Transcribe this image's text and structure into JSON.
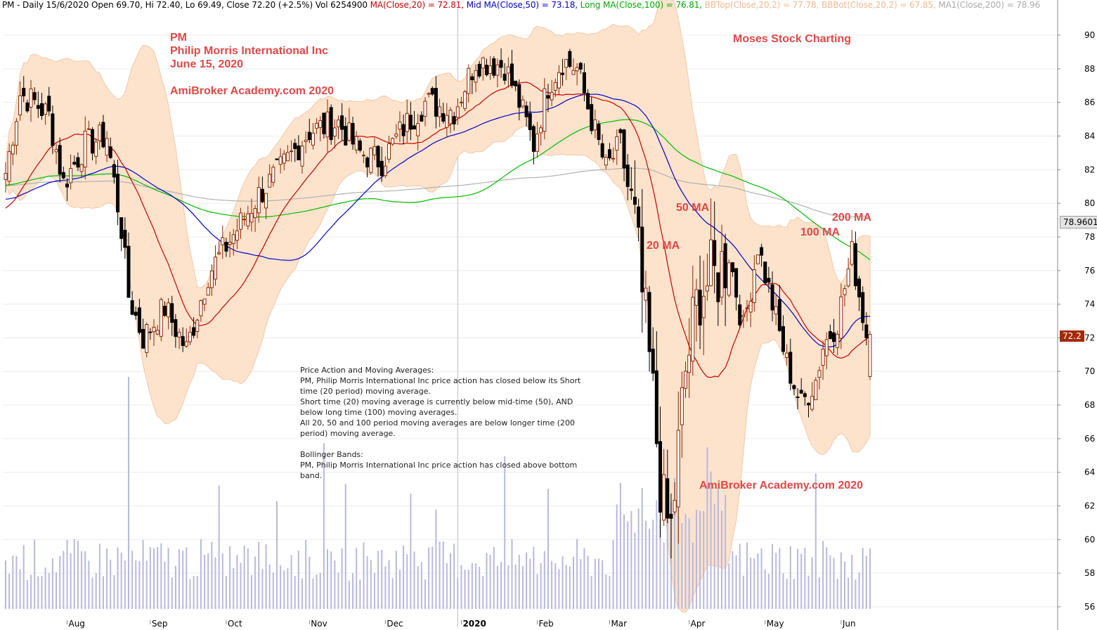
{
  "header": {
    "title": "PM - Daily 15/6/2020 Open 69.70, Hi 72.40, Lo 69.49, Close 72.20 (+2.5%) Vol 6254900 ",
    "indicators": [
      {
        "text": "MA(Close,20) = 72.81, ",
        "color": "#cc0000"
      },
      {
        "text": "Mid MA(Close,50) = 73.18, ",
        "color": "#0000cc"
      },
      {
        "text": "Long MA(Close,100) = 76.81, ",
        "color": "#00aa00"
      },
      {
        "text": "BBTop(Close,20,2) = 77.78, ",
        "color": "#f0b890"
      },
      {
        "text": "BBBot(Close,20,2) = 67.85, ",
        "color": "#f0b890"
      },
      {
        "text": "MA1(Close,200) = 78.96",
        "color": "#aaaaaa"
      }
    ]
  },
  "annotations": {
    "ticker": "PM",
    "company": "Philip Morris International Inc",
    "date": "June 15, 2020",
    "brand_top": "AmiBroker Academy.com  2020",
    "moses": "Moses Stock Charting",
    "brand_bottom": "AmiBroker Academy.com 2020",
    "ma50": "50 MA",
    "ma200": "200 MA",
    "ma100": "100 MA",
    "ma20": "20 MA"
  },
  "note_lines": [
    "Price Action and Moving Averages:",
    "PM, Philip Morris International Inc price action has closed below its Short time (20 period) moving average.",
    "Short time (20) moving average is currently below mid-time (50), AND below long time (100) moving averages.",
    "All 20, 50 and 100 period moving averages are below longer time (200 period) moving average.",
    "",
    "Bollinger Bands:",
    "PM, Philip Morris International Inc price action has closed above bottom band."
  ],
  "price_badges": {
    "ma200": "78.9601",
    "close": "72.2"
  },
  "colors": {
    "up": "#8b2500",
    "down": "#000000",
    "ma20": "#cc0000",
    "ma50": "#0000cc",
    "ma100": "#00bb00",
    "ma200": "#b0b0b0",
    "band": "#fde3cc",
    "bandline": "#f2c8a8",
    "volume": "#b8b8dc",
    "accent": "#e04848"
  },
  "chart_data": {
    "type": "candlestick",
    "title": "PM - Daily 15/6/2020",
    "ylim": [
      55.5,
      91
    ],
    "y_ticks": [
      56,
      58,
      60,
      62,
      64,
      66,
      68,
      70,
      72,
      74,
      76,
      78,
      80,
      82,
      84,
      86,
      88,
      90
    ],
    "x_month_labels": [
      {
        "label": "Aug",
        "index": 17
      },
      {
        "label": "Sep",
        "index": 40
      },
      {
        "label": "Oct",
        "index": 61
      },
      {
        "label": "Nov",
        "index": 84
      },
      {
        "label": "Dec",
        "index": 105
      },
      {
        "label": "2020",
        "index": 126
      },
      {
        "label": "Feb",
        "index": 147
      },
      {
        "label": "Mar",
        "index": 167
      },
      {
        "label": "Apr",
        "index": 189
      },
      {
        "label": "May",
        "index": 210
      },
      {
        "label": "Jun",
        "index": 231
      }
    ],
    "year_separator_index": 125,
    "key_points": [
      [
        0,
        81.8
      ],
      [
        4,
        86.5
      ],
      [
        8,
        86.0
      ],
      [
        12,
        85.2
      ],
      [
        16,
        81.2
      ],
      [
        22,
        83.5
      ],
      [
        28,
        84.0
      ],
      [
        32,
        78.5
      ],
      [
        34,
        74.5
      ],
      [
        38,
        72.0
      ],
      [
        44,
        73.8
      ],
      [
        50,
        71.3
      ],
      [
        56,
        75.8
      ],
      [
        62,
        77.8
      ],
      [
        70,
        80.5
      ],
      [
        76,
        82.0
      ],
      [
        84,
        84.3
      ],
      [
        92,
        84.8
      ],
      [
        98,
        83.0
      ],
      [
        104,
        82.5
      ],
      [
        110,
        84.5
      ],
      [
        116,
        86.0
      ],
      [
        124,
        85.5
      ],
      [
        130,
        88.5
      ],
      [
        138,
        88.2
      ],
      [
        142,
        86.0
      ],
      [
        146,
        83.5
      ],
      [
        150,
        87.0
      ],
      [
        154,
        88.5
      ],
      [
        158,
        88.0
      ],
      [
        162,
        85.0
      ],
      [
        166,
        82.0
      ],
      [
        170,
        83.5
      ],
      [
        174,
        78.5
      ],
      [
        178,
        70.5
      ],
      [
        182,
        61.5
      ],
      [
        184,
        60.5
      ],
      [
        188,
        70.0
      ],
      [
        192,
        75.0
      ],
      [
        196,
        75.5
      ],
      [
        200,
        77.0
      ],
      [
        204,
        72.5
      ],
      [
        208,
        77.5
      ],
      [
        212,
        74.0
      ],
      [
        216,
        70.5
      ],
      [
        220,
        68.0
      ],
      [
        224,
        69.5
      ],
      [
        226,
        71.5
      ],
      [
        230,
        73.0
      ],
      [
        234,
        77.0
      ],
      [
        238,
        72.2
      ]
    ],
    "n_bars": 240,
    "overlays": {
      "ma20_last": 72.81,
      "ma50_last": 73.18,
      "ma100_last": 76.81,
      "bb_top_last": 77.78,
      "bb_bot_last": 67.85,
      "ma200_last": 78.96
    },
    "last_bar": {
      "open": 69.7,
      "high": 72.4,
      "low": 69.49,
      "close": 72.2,
      "volume": 6254900
    }
  }
}
